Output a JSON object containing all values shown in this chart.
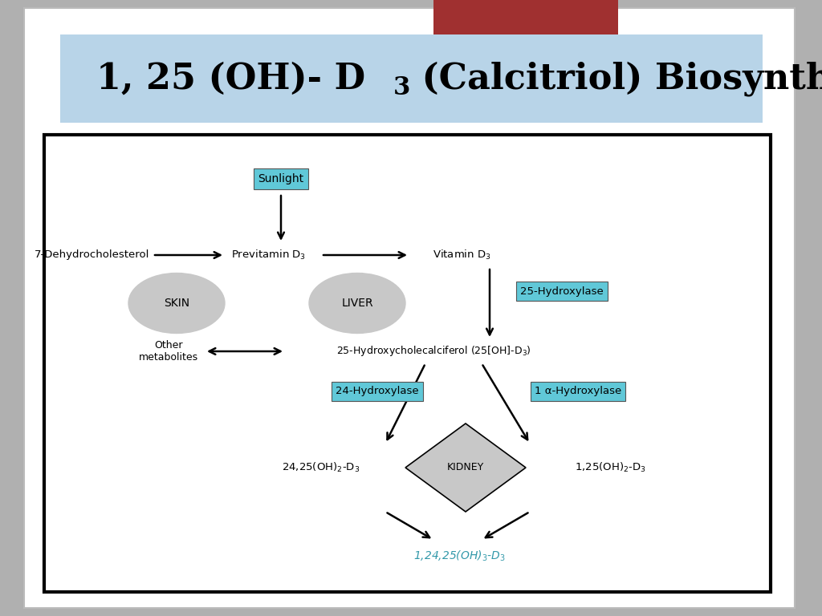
{
  "title_line1": "1, 25 (OH)- D",
  "title_sub": "3",
  "title_line2": " (Calcitriol) Biosynthesis",
  "title_bg_top": "#b8d4e8",
  "title_bg_bottom": "#6fa8c8",
  "bg_color": "#b0b0b0",
  "slide_bg": "#ffffff",
  "diagram_bg": "#ffffff",
  "red_box_color": "#a03030",
  "cyan_box_color": "#60c8d8",
  "gray_ellipse_color": "#c8c8c8",
  "cyan_text_color": "#3399aa"
}
